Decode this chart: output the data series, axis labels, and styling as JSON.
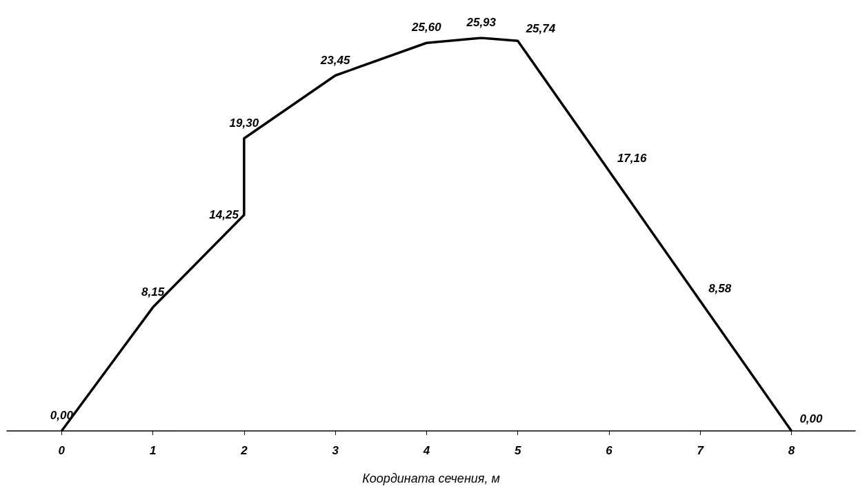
{
  "chart_data": {
    "type": "line",
    "xlabel": "Координата сечения, м",
    "x": [
      0,
      1,
      2,
      2,
      3,
      4,
      4.6,
      5,
      6,
      7,
      8
    ],
    "series": [
      {
        "color": "#000000",
        "values": [
          0,
          8.15,
          14.25,
          19.3,
          23.45,
          25.6,
          25.93,
          25.74,
          17.16,
          8.58,
          0
        ],
        "value_labels": [
          "0,00",
          "8,15",
          "14,25",
          "19,30",
          "23,45",
          "25,60",
          "25,93",
          "25,74",
          "17,16",
          "8,58",
          "0,00"
        ]
      }
    ],
    "xlim": [
      -0.6,
      8.7
    ],
    "xticks": [
      0,
      1,
      2,
      3,
      4,
      5,
      6,
      7,
      8
    ],
    "tick_labels": "x",
    "grid": false,
    "marker": "none",
    "line_style": "solid"
  }
}
